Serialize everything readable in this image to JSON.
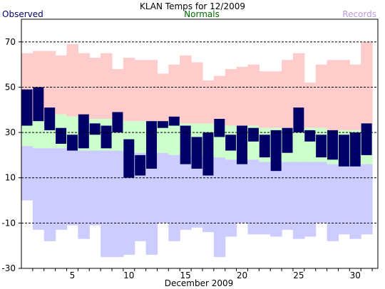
{
  "chart_data": {
    "type": "bar",
    "title": "KLAN Temps for 12/2009",
    "xlabel": "December 2009",
    "ylabel": "",
    "legend": [
      {
        "name": "Observed",
        "color": "#000066"
      },
      {
        "name": "Normals",
        "color": "#006600"
      },
      {
        "name": "Records",
        "color": "#bb99dd"
      }
    ],
    "legend_placement": "top (left / center / right)",
    "ylim": [
      -30,
      80
    ],
    "y_ticks": [
      "70",
      "50",
      "30",
      "10",
      "-10",
      "-30"
    ],
    "y_tick_values": [
      70,
      50,
      30,
      10,
      -10,
      -30
    ],
    "x_ticks": [
      "5",
      "10",
      "15",
      "20",
      "25",
      "30"
    ],
    "x_tick_values": [
      5,
      10,
      15,
      20,
      25,
      30
    ],
    "days": [
      1,
      2,
      3,
      4,
      5,
      6,
      7,
      8,
      9,
      10,
      11,
      12,
      13,
      14,
      15,
      16,
      17,
      18,
      19,
      20,
      21,
      22,
      23,
      24,
      25,
      26,
      27,
      28,
      29,
      30,
      31
    ],
    "grid": "dashed horizontal at every 20 degrees",
    "series": [
      {
        "name": "Records",
        "color": "#ffcccc",
        "role": "record_high",
        "values": [
          65,
          66,
          66,
          64,
          69,
          65,
          63,
          65,
          58,
          63,
          62,
          62,
          56,
          60,
          64,
          61,
          53,
          55,
          58,
          59,
          60,
          57,
          57,
          62,
          65,
          52,
          60,
          62,
          62,
          60,
          70
        ]
      },
      {
        "name": "Records",
        "color": "#ccccff",
        "role": "record_low",
        "values": [
          0,
          -13,
          -18,
          -13,
          -11,
          -17,
          -11,
          -25,
          -25,
          -24,
          -18,
          -24,
          -10,
          -18,
          -13,
          -12,
          -14,
          -25,
          -16,
          -10,
          -15,
          -15,
          -16,
          -13,
          -17,
          -16,
          -10,
          -18,
          -15,
          -17,
          -15
        ]
      },
      {
        "name": "Normals",
        "color": "#ccffcc",
        "role": "normal_high",
        "values": [
          34,
          35,
          37,
          38,
          37,
          37,
          36,
          36,
          36,
          35,
          35,
          35,
          35,
          35,
          34,
          34,
          34,
          33,
          33,
          33,
          33,
          32,
          32,
          32,
          32,
          32,
          32,
          31,
          31,
          31,
          31
        ]
      },
      {
        "name": "Normals",
        "color": "#ccffcc",
        "role": "normal_low",
        "values": [
          24,
          23,
          23,
          23,
          23,
          22,
          22,
          22,
          22,
          21,
          21,
          21,
          21,
          20,
          20,
          20,
          19,
          19,
          18,
          18,
          18,
          17,
          17,
          17,
          17,
          17,
          17,
          16,
          16,
          16,
          16
        ]
      },
      {
        "name": "Observed",
        "color": "#000066",
        "role": "observed_high",
        "values": [
          49,
          50,
          41,
          32,
          29,
          38,
          34,
          33,
          39,
          27,
          20,
          35,
          35,
          37,
          33,
          28,
          30,
          36,
          29,
          33,
          32,
          29,
          31,
          32,
          41,
          31,
          29,
          31,
          29,
          30,
          34
        ]
      },
      {
        "name": "Observed",
        "color": "#000066",
        "role": "observed_low",
        "values": [
          33,
          35,
          31,
          25,
          22,
          23,
          29,
          23,
          30,
          10,
          11,
          14,
          32,
          33,
          16,
          14,
          11,
          28,
          22,
          16,
          26,
          19,
          13,
          21,
          30,
          26,
          19,
          18,
          15,
          15,
          20
        ]
      }
    ]
  }
}
